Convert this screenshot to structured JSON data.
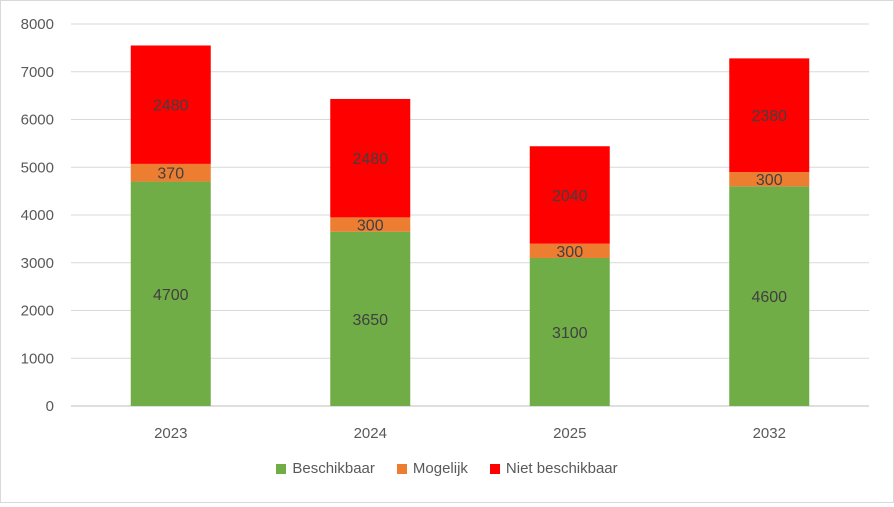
{
  "chart_data": {
    "type": "bar",
    "stacked": true,
    "categories": [
      "2023",
      "2024",
      "2025",
      "2032"
    ],
    "series": [
      {
        "name": "Beschikbaar",
        "color": "#70ad47",
        "values": [
          4700,
          3650,
          3100,
          4600
        ]
      },
      {
        "name": "Mogelijk",
        "color": "#ed7d31",
        "values": [
          370,
          300,
          300,
          300
        ]
      },
      {
        "name": "Niet beschikbaar",
        "color": "#ff0000",
        "values": [
          2480,
          2480,
          2040,
          2380
        ]
      }
    ],
    "ylim": [
      0,
      8000
    ],
    "yticks": [
      "0",
      "1000",
      "2000",
      "3000",
      "4000",
      "5000",
      "6000",
      "7000",
      "8000"
    ],
    "grid": true,
    "legend_position": "bottom"
  }
}
